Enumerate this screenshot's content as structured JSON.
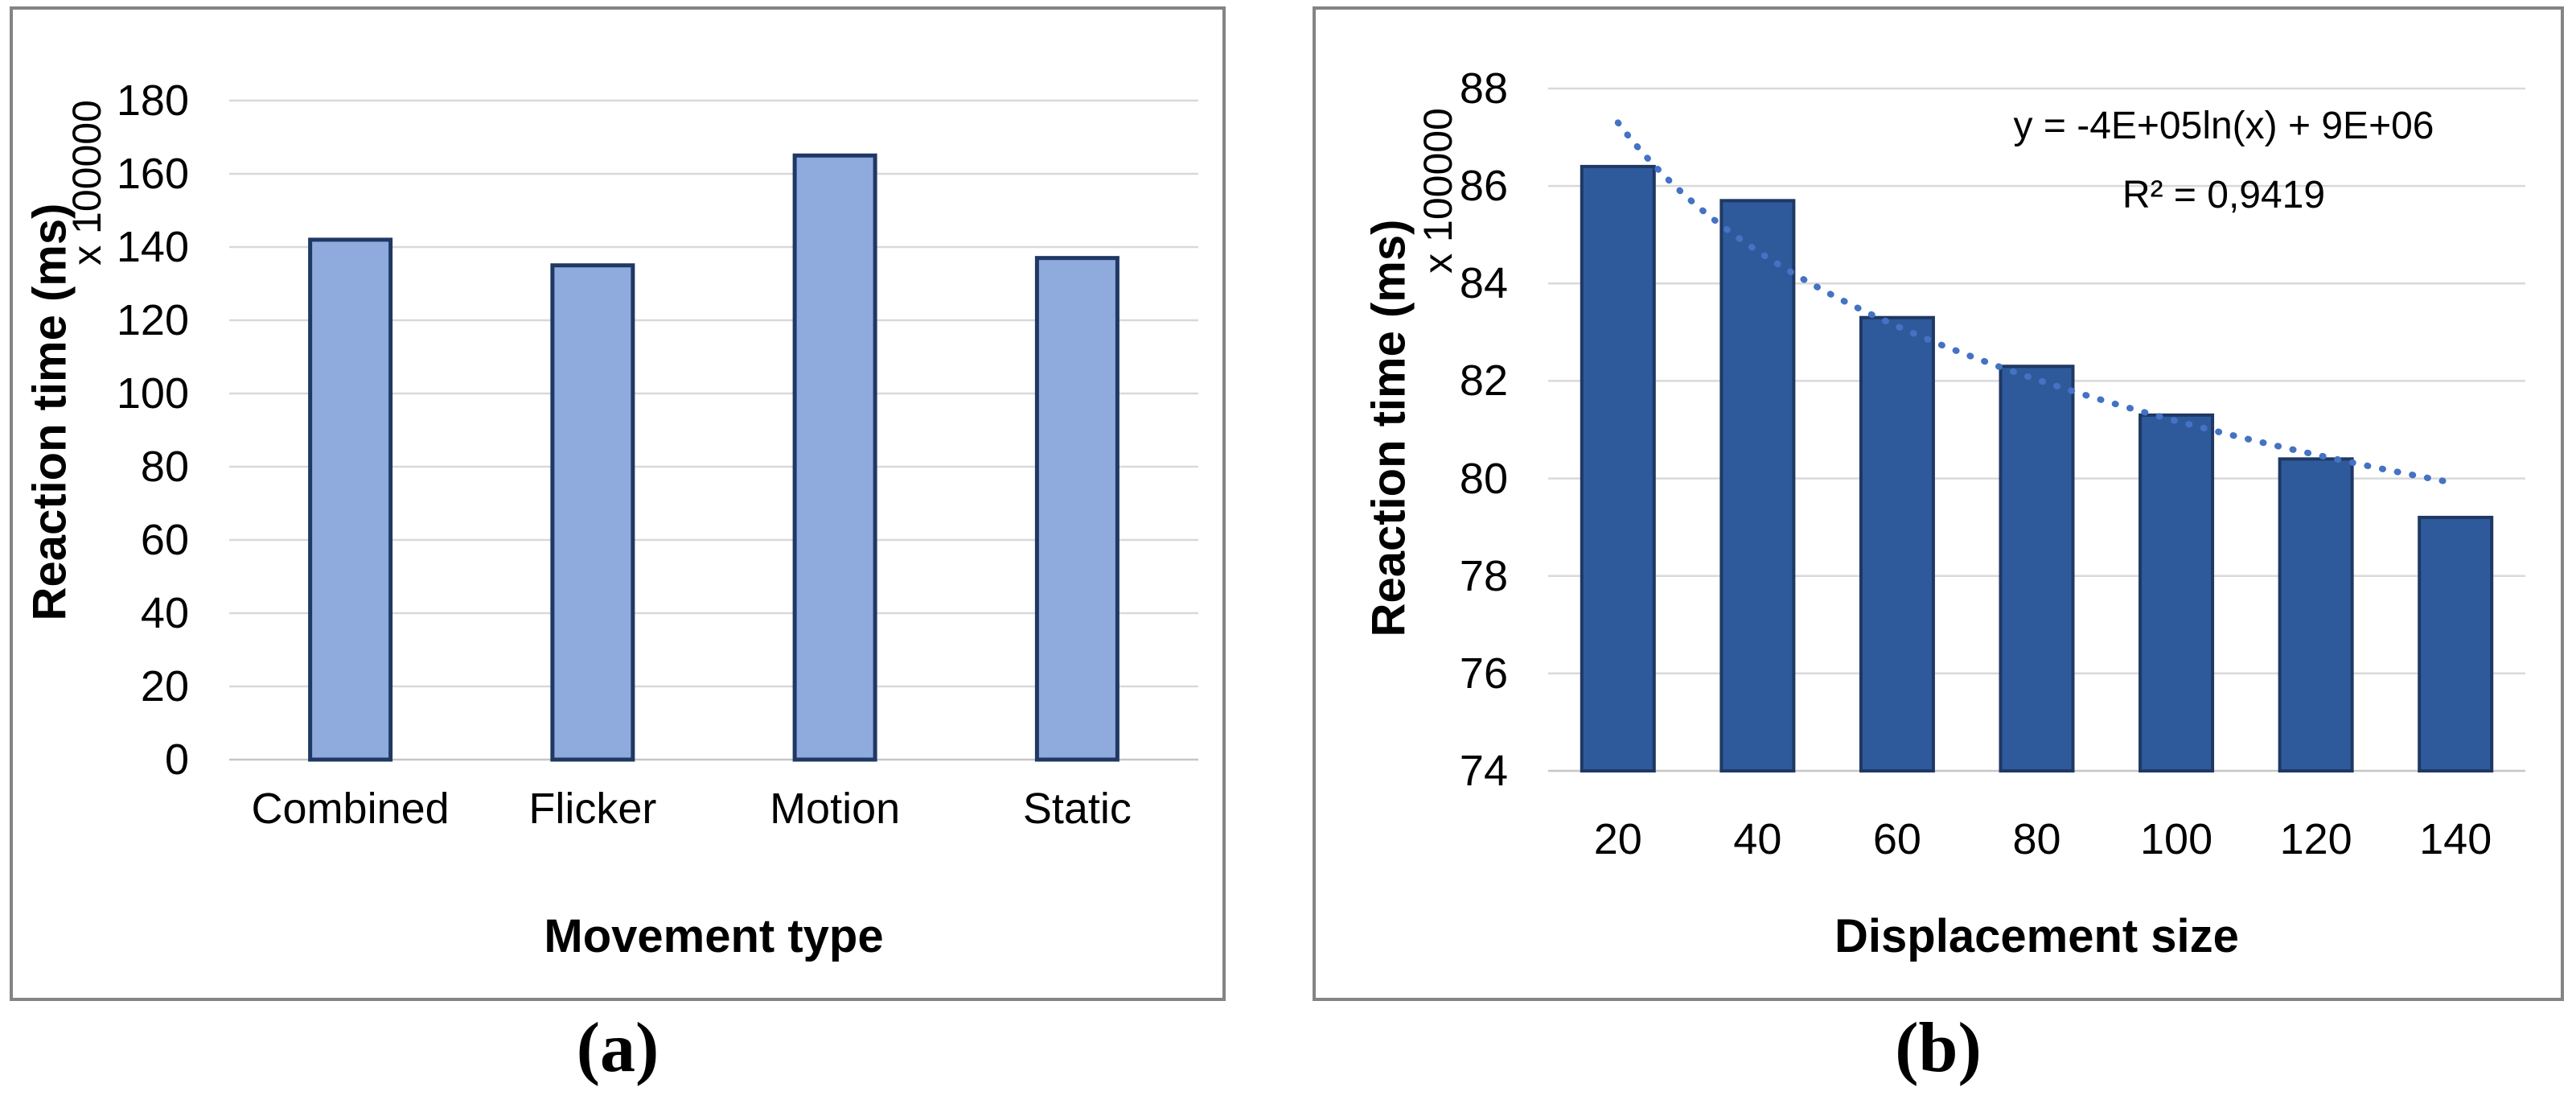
{
  "figure": {
    "caption_a": "(a)",
    "caption_b": "(b)"
  },
  "colors": {
    "panel_border": "#848484",
    "gridline": "#d9d9d9",
    "axis_line": "#c6c6c6",
    "text": "#000000",
    "bar_fill_a": "#8faadc",
    "bar_border_a": "#1f3864",
    "bar_fill_b": "#2e5a9b",
    "bar_border_b": "#1f3864",
    "trendline": "#4472c4"
  },
  "chart_data": [
    {
      "id": "a",
      "type": "bar",
      "categories": [
        "Combined",
        "Flicker",
        "Motion",
        "Static"
      ],
      "values": [
        142,
        135,
        165,
        137
      ],
      "xlabel": "Movement type",
      "ylabel": "Reaction time (ms)",
      "axis_multiplier": "x 100000",
      "ylim": [
        0,
        180
      ],
      "yticks": [
        0,
        20,
        40,
        60,
        80,
        100,
        120,
        140,
        160,
        180
      ],
      "grid": true,
      "legend": "none",
      "bar_fill": "#8faadc",
      "bar_border": "#1f3864",
      "bar_border_width": 5
    },
    {
      "id": "b",
      "type": "bar",
      "categories": [
        "20",
        "40",
        "60",
        "80",
        "100",
        "120",
        "140"
      ],
      "values": [
        86.4,
        85.7,
        83.3,
        82.3,
        81.3,
        80.4,
        79.2
      ],
      "xlabel": "Displacement size",
      "ylabel": "Reaction time (ms)",
      "axis_multiplier": "x 100000",
      "ylim": [
        74,
        88
      ],
      "yticks": [
        74,
        76,
        78,
        80,
        82,
        84,
        86,
        88
      ],
      "grid": true,
      "legend": "none",
      "bar_fill": "#2e5a9b",
      "bar_border": "#1f3864",
      "bar_border_width": 4,
      "trendline": {
        "type": "logarithmic",
        "style": "dotted",
        "color": "#4472c4",
        "x_start": 20,
        "x_end": 140,
        "value_start": 87.3,
        "value_end": 79.9,
        "equation": "y = -4E+05ln(x) + 9E+06",
        "r2": "R² = 0,9419"
      }
    }
  ]
}
